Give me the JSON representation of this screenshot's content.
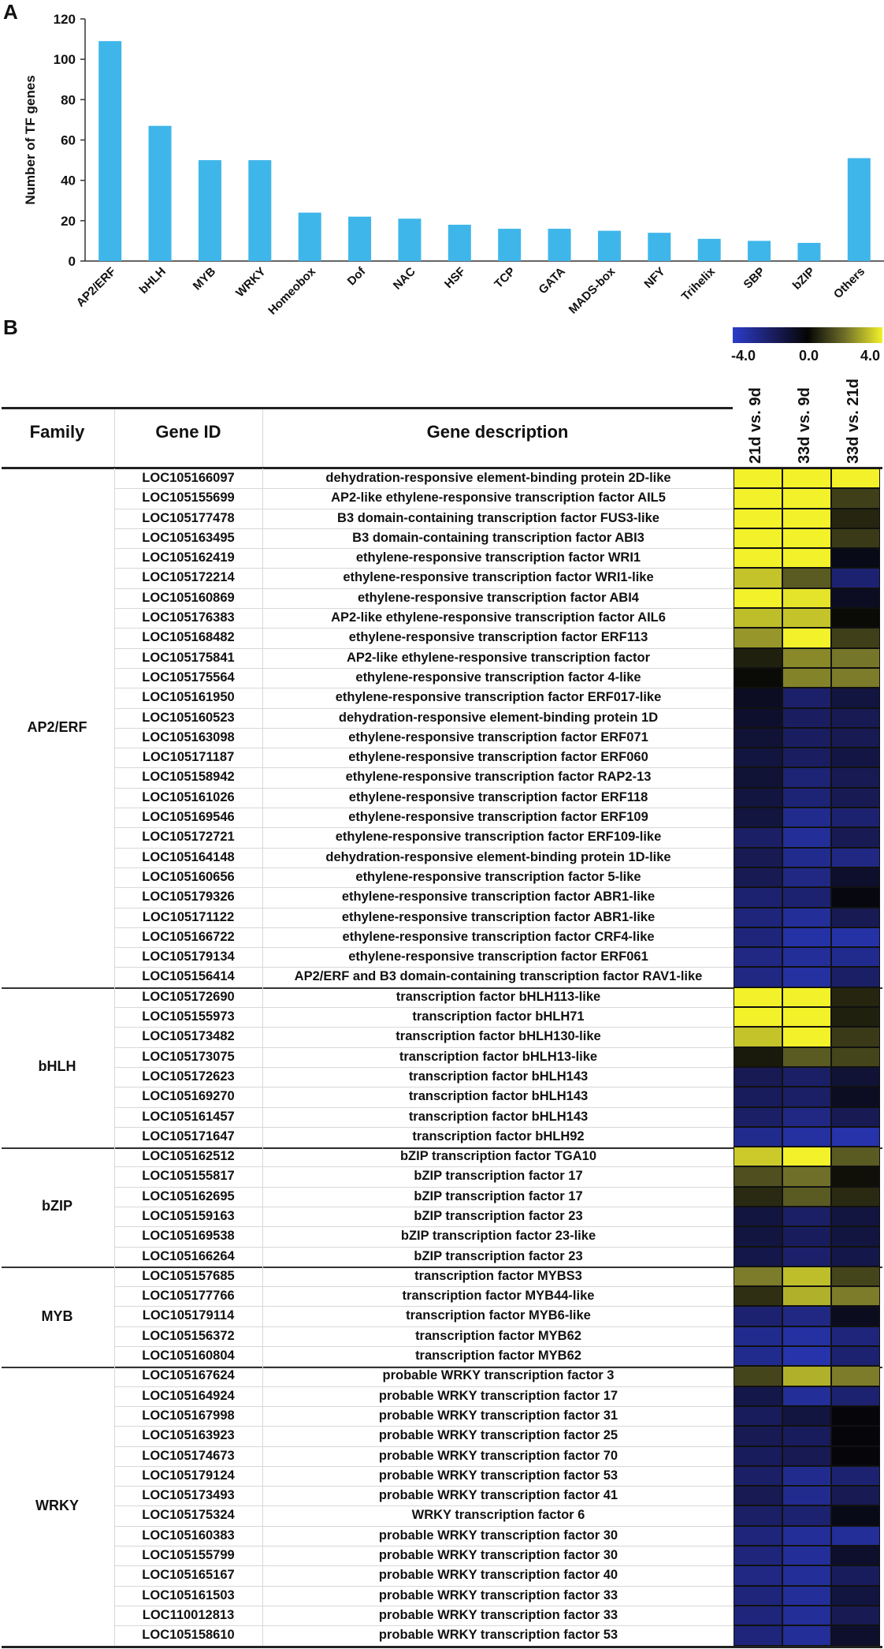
{
  "panel_a_label": "A",
  "panel_b_label": "B",
  "chart_data": [
    {
      "type": "bar",
      "ylabel": "Number of TF genes",
      "ylim": [
        0,
        120
      ],
      "yticks": [
        "0",
        "20",
        "40",
        "60",
        "80",
        "100",
        "120"
      ],
      "categories": [
        "AP2/ERF",
        "bHLH",
        "MYB",
        "WRKY",
        "Homeobox",
        "Dof",
        "NAC",
        "HSF",
        "TCP",
        "GATA",
        "MADS-box",
        "NFY",
        "Trihelix",
        "SBP",
        "bZIP",
        "Others"
      ],
      "values": [
        109,
        67,
        50,
        50,
        24,
        22,
        21,
        18,
        16,
        16,
        15,
        14,
        11,
        10,
        9,
        51
      ],
      "bar_color": "#3fb6ea"
    },
    {
      "type": "heatmap",
      "legend": {
        "min_label": "-4.0",
        "mid_label": "0.0",
        "max_label": "4.0",
        "range": [
          -4,
          4
        ]
      },
      "headers": {
        "family": "Family",
        "gene_id": "Gene ID",
        "description": "Gene description"
      },
      "columns": [
        "21d vs. 9d",
        "33d vs. 9d",
        "33d vs. 21d"
      ],
      "groups": [
        {
          "family": "AP2/ERF",
          "rows": [
            {
              "id": "LOC105166097",
              "desc": "dehydration-responsive element-binding protein 2D-like",
              "v": [
                4.0,
                4.0,
                4.0
              ]
            },
            {
              "id": "LOC105155699",
              "desc": "AP2-like ethylene-responsive transcription factor AIL5",
              "v": [
                4.0,
                4.0,
                1.1
              ]
            },
            {
              "id": "LOC105177478",
              "desc": "B3 domain-containing transcription factor FUS3-like",
              "v": [
                4.0,
                4.0,
                0.6
              ]
            },
            {
              "id": "LOC105163495",
              "desc": "B3 domain-containing transcription factor ABI3",
              "v": [
                4.0,
                4.0,
                1.0
              ]
            },
            {
              "id": "LOC105162419",
              "desc": "ethylene-responsive transcription factor WRI1",
              "v": [
                4.0,
                4.0,
                -0.4
              ]
            },
            {
              "id": "LOC105172214",
              "desc": "ethylene-responsive transcription factor WRI1-like",
              "v": [
                3.3,
                1.6,
                -2.2
              ]
            },
            {
              "id": "LOC105160869",
              "desc": "ethylene-responsive transcription factor ABI4",
              "v": [
                4.0,
                3.8,
                -0.6
              ]
            },
            {
              "id": "LOC105176383",
              "desc": "AP2-like ethylene-responsive transcription factor AIL6",
              "v": [
                3.2,
                3.3,
                0.1
              ]
            },
            {
              "id": "LOC105168482",
              "desc": "ethylene-responsive transcription factor ERF113",
              "v": [
                2.6,
                4.0,
                1.1
              ]
            },
            {
              "id": "LOC105175841",
              "desc": "AP2-like ethylene-responsive transcription factor",
              "v": [
                0.5,
                2.4,
                2.1
              ]
            },
            {
              "id": "LOC105175564",
              "desc": "ethylene-responsive transcription factor 4-like",
              "v": [
                0.1,
                2.3,
                2.2
              ]
            },
            {
              "id": "LOC105161950",
              "desc": "ethylene-responsive transcription factor ERF017-like",
              "v": [
                -0.6,
                -2.1,
                -1.2
              ]
            },
            {
              "id": "LOC105160523",
              "desc": "dehydration-responsive element-binding protein 1D",
              "v": [
                -0.8,
                -1.9,
                -1.6
              ]
            },
            {
              "id": "LOC105163098",
              "desc": "ethylene-responsive transcription factor ERF071",
              "v": [
                -1.0,
                -1.9,
                -1.6
              ]
            },
            {
              "id": "LOC105171187",
              "desc": "ethylene-responsive transcription factor ERF060",
              "v": [
                -1.2,
                -1.9,
                -1.3
              ]
            },
            {
              "id": "LOC105158942",
              "desc": "ethylene-responsive transcription factor RAP2-13",
              "v": [
                -1.0,
                -2.3,
                -1.6
              ]
            },
            {
              "id": "LOC105161026",
              "desc": "ethylene-responsive transcription factor ERF118",
              "v": [
                -1.2,
                -2.3,
                -1.6
              ]
            },
            {
              "id": "LOC105169546",
              "desc": "ethylene-responsive transcription factor ERF109",
              "v": [
                -1.2,
                -2.8,
                -2.2
              ]
            },
            {
              "id": "LOC105172721",
              "desc": "ethylene-responsive transcription factor ERF109-like",
              "v": [
                -2.0,
                -3.0,
                -1.6
              ]
            },
            {
              "id": "LOC105164148",
              "desc": "dehydration-responsive element-binding protein 1D-like",
              "v": [
                -1.6,
                -2.8,
                -2.6
              ]
            },
            {
              "id": "LOC105160656",
              "desc": "ethylene-responsive transcription factor 5-like",
              "v": [
                -1.6,
                -2.6,
                -0.8
              ]
            },
            {
              "id": "LOC105179326",
              "desc": "ethylene-responsive transcription factor ABR1-like",
              "v": [
                -2.2,
                -2.2,
                -0.2
              ]
            },
            {
              "id": "LOC105171122",
              "desc": "ethylene-responsive transcription factor ABR1-like",
              "v": [
                -2.4,
                -3.0,
                -1.6
              ]
            },
            {
              "id": "LOC105166722",
              "desc": "ethylene-responsive transcription factor CRF4-like",
              "v": [
                -2.4,
                -3.3,
                -3.3
              ]
            },
            {
              "id": "LOC105179134",
              "desc": "ethylene-responsive transcription factor ERF061",
              "v": [
                -2.6,
                -3.0,
                -2.8
              ]
            },
            {
              "id": "LOC105156414",
              "desc": "AP2/ERF and B3 domain-containing transcription factor RAV1-like",
              "v": [
                -2.6,
                -3.2,
                -2.0
              ]
            }
          ]
        },
        {
          "family": "bHLH",
          "rows": [
            {
              "id": "LOC105172690",
              "desc": "transcription factor bHLH113-like",
              "v": [
                4.0,
                4.0,
                0.6
              ]
            },
            {
              "id": "LOC105155973",
              "desc": "transcription factor bHLH71",
              "v": [
                4.0,
                4.0,
                0.5
              ]
            },
            {
              "id": "LOC105173482",
              "desc": "transcription factor bHLH130-like",
              "v": [
                3.3,
                4.0,
                1.0
              ]
            },
            {
              "id": "LOC105173075",
              "desc": "transcription factor bHLH13-like",
              "v": [
                0.4,
                1.6,
                1.2
              ]
            },
            {
              "id": "LOC105172623",
              "desc": "transcription factor bHLH143",
              "v": [
                -1.6,
                -2.0,
                -1.0
              ]
            },
            {
              "id": "LOC105169270",
              "desc": "transcription factor bHLH143",
              "v": [
                -1.8,
                -2.0,
                -0.6
              ]
            },
            {
              "id": "LOC105161457",
              "desc": "transcription factor bHLH143",
              "v": [
                -2.0,
                -2.6,
                -1.6
              ]
            },
            {
              "id": "LOC105171647",
              "desc": "transcription factor bHLH92",
              "v": [
                -2.8,
                -3.2,
                -3.4
              ]
            }
          ]
        },
        {
          "family": "bZIP",
          "rows": [
            {
              "id": "LOC105162512",
              "desc": "bZIP transcription factor TGA10",
              "v": [
                3.4,
                4.0,
                1.6
              ]
            },
            {
              "id": "LOC105155817",
              "desc": "bZIP transcription factor 17",
              "v": [
                1.4,
                2.0,
                0.2
              ]
            },
            {
              "id": "LOC105162695",
              "desc": "bZIP transcription factor 17",
              "v": [
                0.7,
                1.6,
                0.7
              ]
            },
            {
              "id": "LOC105159163",
              "desc": "bZIP transcription factor 23",
              "v": [
                -1.2,
                -2.0,
                -1.2
              ]
            },
            {
              "id": "LOC105169538",
              "desc": "bZIP transcription factor 23-like",
              "v": [
                -1.2,
                -1.8,
                -1.2
              ]
            },
            {
              "id": "LOC105166264",
              "desc": "bZIP transcription factor 23",
              "v": [
                -1.4,
                -2.1,
                -1.4
              ]
            }
          ]
        },
        {
          "family": "MYB",
          "rows": [
            {
              "id": "LOC105157685",
              "desc": "transcription factor MYBS3",
              "v": [
                2.2,
                3.2,
                1.2
              ]
            },
            {
              "id": "LOC105177766",
              "desc": "transcription factor MYB44-like",
              "v": [
                0.8,
                3.0,
                2.2
              ]
            },
            {
              "id": "LOC105179114",
              "desc": "transcription factor MYB6-like",
              "v": [
                -2.2,
                -2.6,
                -0.5
              ]
            },
            {
              "id": "LOC105156372",
              "desc": "transcription factor MYB62",
              "v": [
                -2.8,
                -3.2,
                -2.4
              ]
            },
            {
              "id": "LOC105160804",
              "desc": "transcription factor MYB62",
              "v": [
                -2.8,
                -3.4,
                -2.2
              ]
            }
          ]
        },
        {
          "family": "WRKY",
          "rows": [
            {
              "id": "LOC105167624",
              "desc": "probable WRKY transcription factor 3",
              "v": [
                1.2,
                3.0,
                2.2
              ]
            },
            {
              "id": "LOC105164924",
              "desc": "probable WRKY transcription factor 17",
              "v": [
                -1.4,
                -3.0,
                -2.2
              ]
            },
            {
              "id": "LOC105167998",
              "desc": "probable WRKY transcription factor 31",
              "v": [
                -1.8,
                -1.2,
                -0.1
              ]
            },
            {
              "id": "LOC105163923",
              "desc": "probable WRKY transcription factor 25",
              "v": [
                -1.6,
                -1.8,
                -0.1
              ]
            },
            {
              "id": "LOC105174673",
              "desc": "probable WRKY transcription factor 70",
              "v": [
                -1.8,
                -1.6,
                -0.1
              ]
            },
            {
              "id": "LOC105179124",
              "desc": "probable WRKY transcription factor 53",
              "v": [
                -2.0,
                -2.8,
                -2.2
              ]
            },
            {
              "id": "LOC105173493",
              "desc": "probable WRKY transcription factor 41",
              "v": [
                -1.6,
                -2.8,
                -1.6
              ]
            },
            {
              "id": "LOC105175324",
              "desc": "WRKY transcription factor 6",
              "v": [
                -2.0,
                -2.2,
                -0.4
              ]
            },
            {
              "id": "LOC105160383",
              "desc": "probable WRKY transcription factor 30",
              "v": [
                -2.4,
                -3.0,
                -3.0
              ]
            },
            {
              "id": "LOC105155799",
              "desc": "probable WRKY transcription factor 30",
              "v": [
                -2.4,
                -3.0,
                -0.8
              ]
            },
            {
              "id": "LOC105165167",
              "desc": "probable WRKY transcription factor 40",
              "v": [
                -2.6,
                -3.0,
                -1.8
              ]
            },
            {
              "id": "LOC105161503",
              "desc": "probable WRKY transcription factor 33",
              "v": [
                -2.4,
                -3.0,
                -1.2
              ]
            },
            {
              "id": "LOC110012813",
              "desc": "probable WRKY transcription factor 33",
              "v": [
                -2.4,
                -3.0,
                -1.6
              ]
            },
            {
              "id": "LOC105158610",
              "desc": "probable WRKY transcription factor 53",
              "v": [
                -2.4,
                -3.0,
                -0.8
              ]
            }
          ]
        }
      ]
    }
  ]
}
